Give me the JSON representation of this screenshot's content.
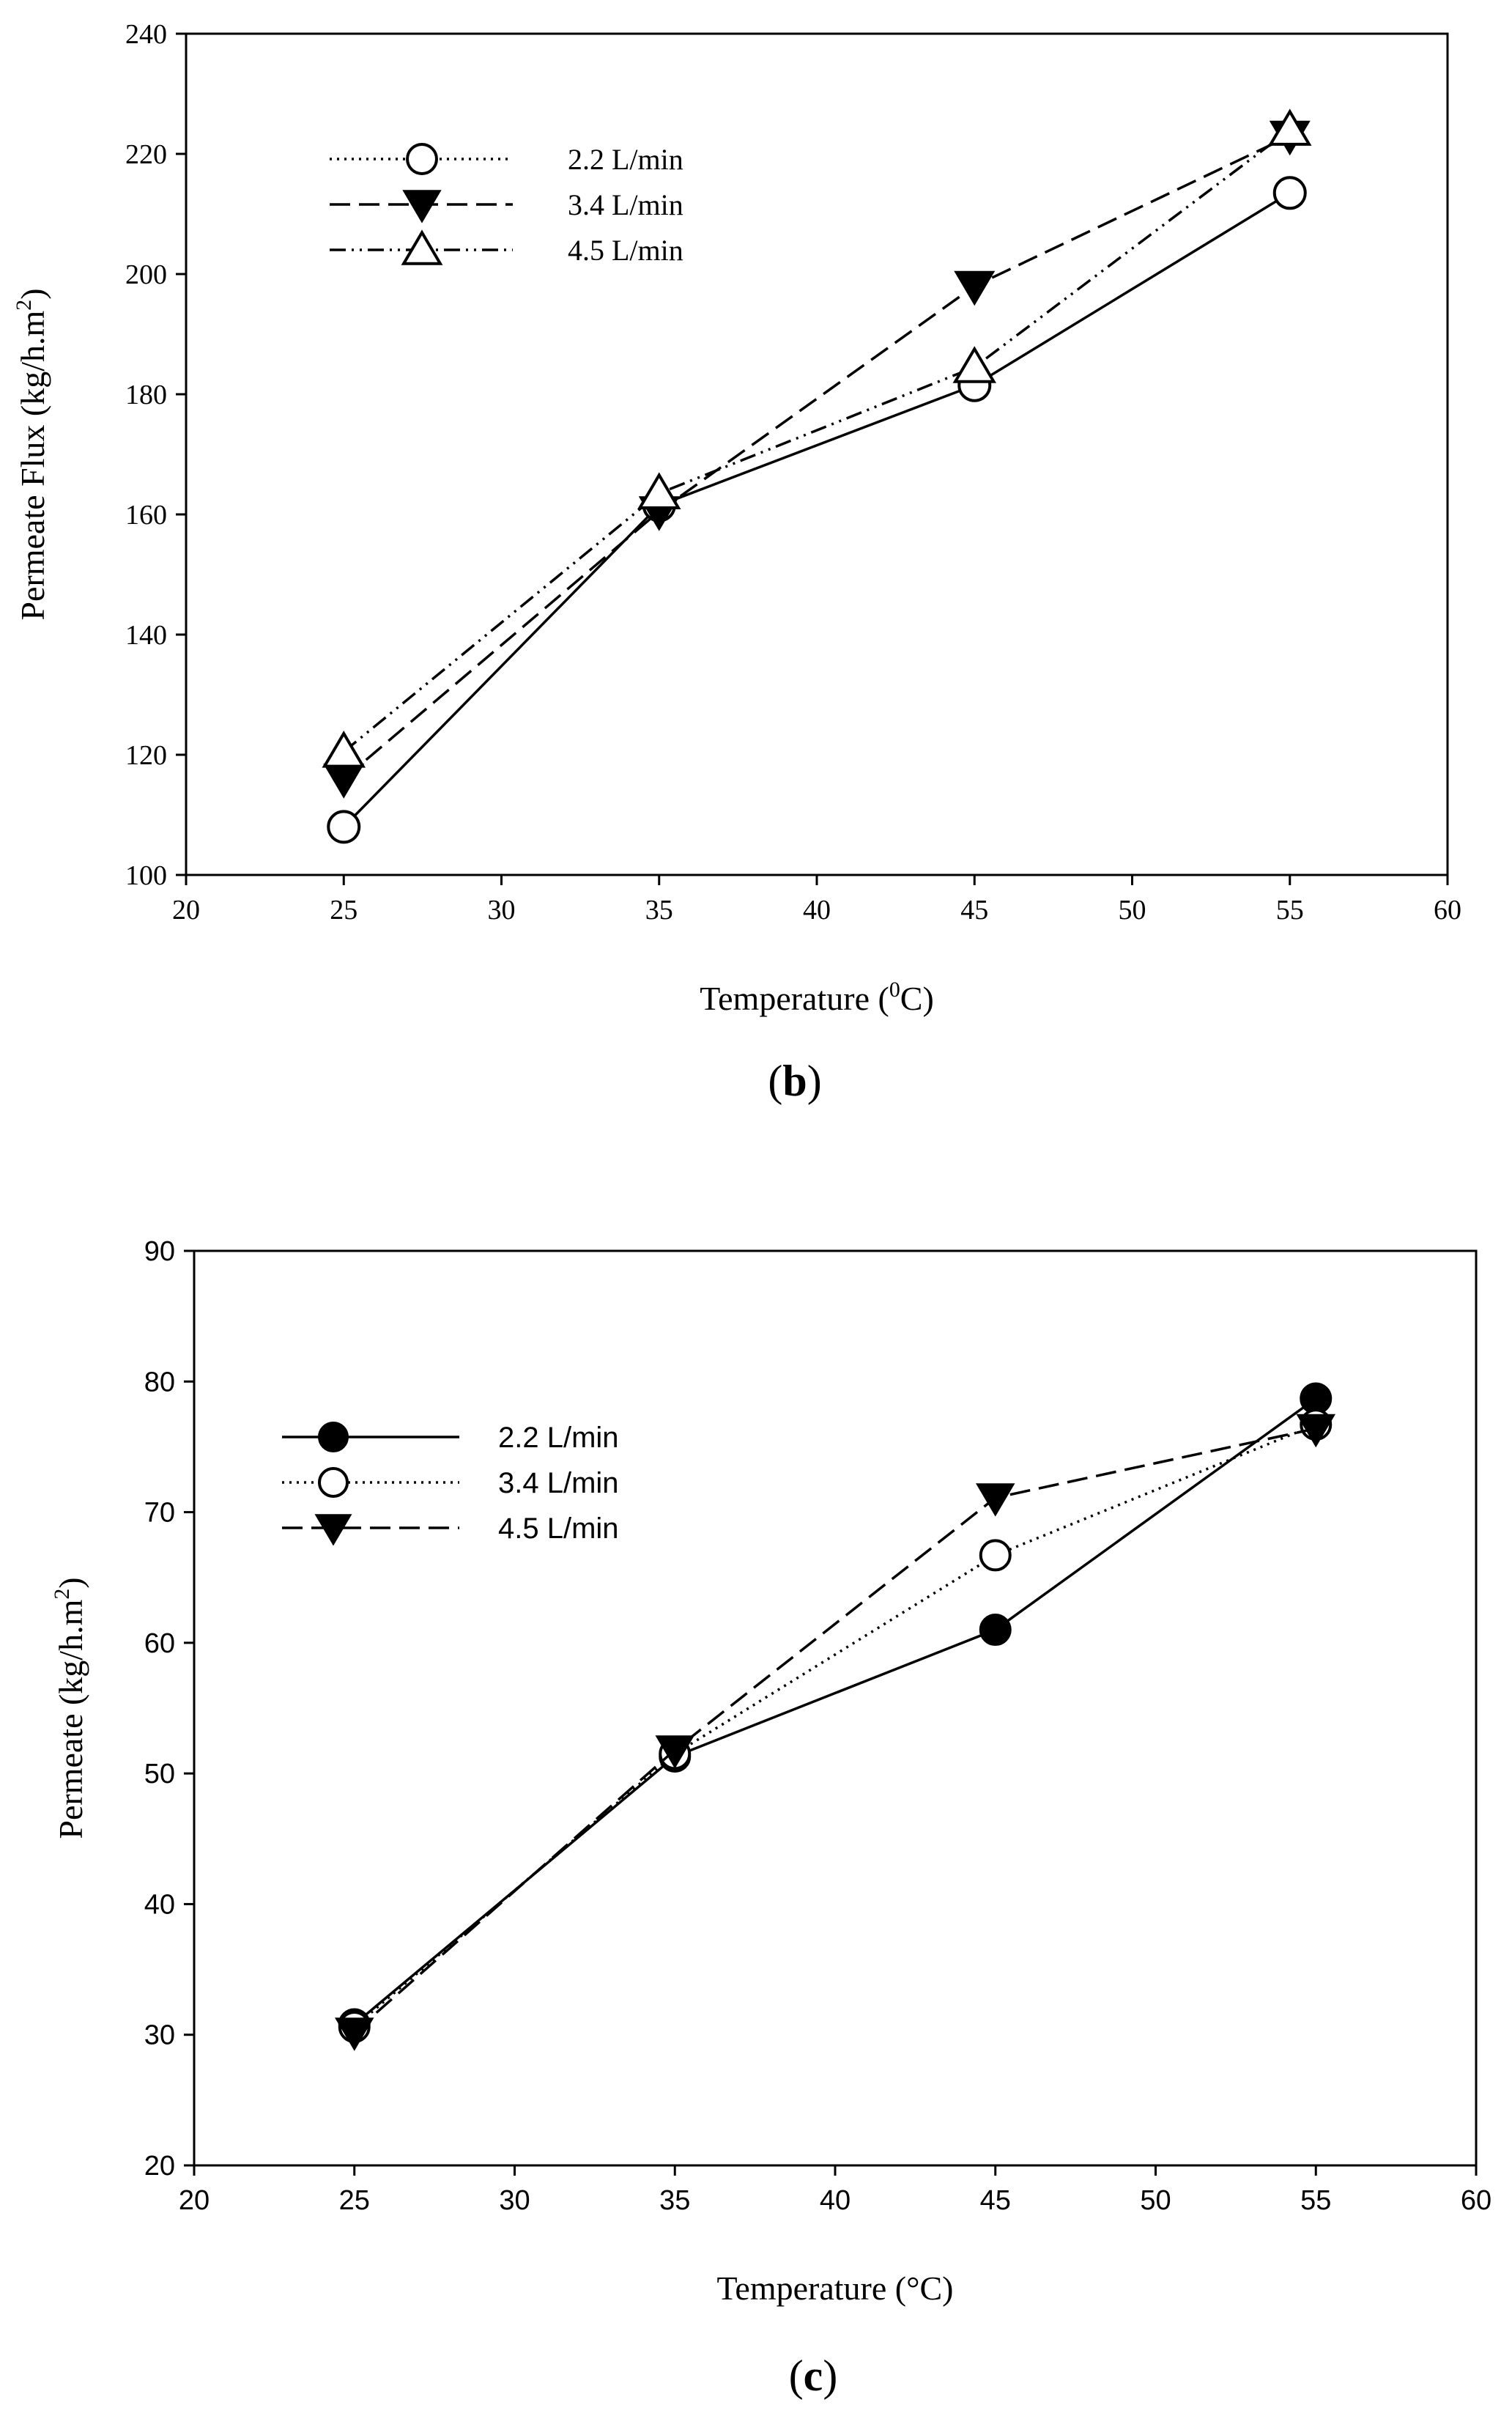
{
  "chart_data": [
    {
      "type": "line",
      "panel_label": "b",
      "title": "",
      "xlabel": "Temperature (",
      "xlabel_sup": "0",
      "xlabel_suffix": "C)",
      "ylabel": "Permeate Flux (kg/h.m",
      "ylabel_sup": "2",
      "ylabel_suffix": ")",
      "xlim": [
        20,
        60
      ],
      "ylim": [
        100,
        240
      ],
      "xticks": [
        20,
        25,
        30,
        35,
        40,
        45,
        50,
        55,
        60
      ],
      "yticks": [
        100,
        120,
        140,
        160,
        180,
        200,
        220,
        240
      ],
      "grid": false,
      "legend_position": "top-left",
      "x": [
        25,
        35,
        45,
        55
      ],
      "series": [
        {
          "name": "2.2 L/min",
          "legend_label": "2.2 L/min",
          "values": [
            108,
            161.5,
            181.5,
            213.5
          ],
          "marker": "open-circle",
          "line": "solid",
          "legend_line": "dotted"
        },
        {
          "name": "3.4 L/min",
          "legend_label": "3.4 L/min",
          "values": [
            116,
            160.5,
            198,
            223
          ],
          "marker": "filled-triangle-down",
          "line": "dashed",
          "legend_line": "dashed"
        },
        {
          "name": "4.5 L/min",
          "legend_label": "4.5 L/min",
          "values": [
            120.5,
            163.5,
            184.5,
            224
          ],
          "marker": "open-triangle-up",
          "line": "dash-dot-dot",
          "legend_line": "dash-dot-dot"
        }
      ]
    },
    {
      "type": "line",
      "panel_label": "c",
      "title": "",
      "xlabel": "Temperature (°C)",
      "ylabel": "Permeate (kg/h.m",
      "ylabel_sup": "2",
      "ylabel_suffix": ")",
      "xlim": [
        20,
        60
      ],
      "ylim": [
        20,
        90
      ],
      "xticks": [
        20,
        25,
        30,
        35,
        40,
        45,
        50,
        55,
        60
      ],
      "yticks": [
        20,
        30,
        40,
        50,
        60,
        70,
        80,
        90
      ],
      "grid": false,
      "legend_position": "top-left",
      "x": [
        25,
        35,
        45,
        55
      ],
      "series": [
        {
          "name": "2.2 L/min",
          "legend_label": "2.2 L/min",
          "values": [
            30.8,
            51.3,
            61,
            78.7
          ],
          "marker": "filled-circle",
          "line": "solid"
        },
        {
          "name": "3.4 L/min",
          "legend_label": "3.4 L/min",
          "values": [
            30.6,
            51.5,
            66.7,
            76.7
          ],
          "marker": "open-circle",
          "line": "dotted"
        },
        {
          "name": "4.5 L/min",
          "legend_label": "4.5 L/min",
          "values": [
            30.2,
            51.8,
            71.1,
            76.4
          ],
          "marker": "filled-triangle-down",
          "line": "dashed"
        }
      ]
    }
  ]
}
